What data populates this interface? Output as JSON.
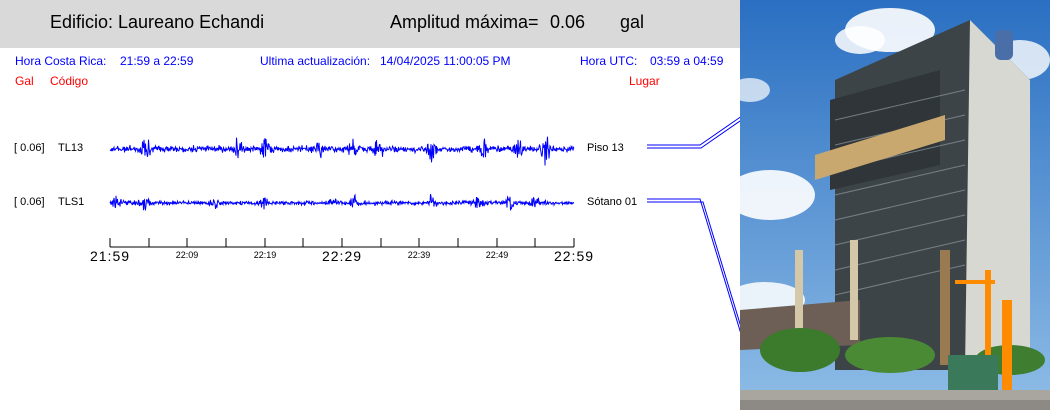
{
  "header": {
    "building_label": "Edificio: Laureano Echandi",
    "amplitude_label": "Amplitud máxima=",
    "amplitude_value": "0.06",
    "amplitude_unit": "gal"
  },
  "info": {
    "cr_time_label": "Hora Costa Rica:",
    "cr_time_value": "21:59 a 22:59",
    "update_label": "Ultima actualización:",
    "update_value": "14/04/2025 11:00:05 PM",
    "utc_label": "Hora UTC:",
    "utc_value": "03:59 a 04:59"
  },
  "columns": {
    "gal": "Gal",
    "code": "Código",
    "place": "Lugar"
  },
  "channels": [
    {
      "gal": "[   0.06]",
      "code": "TL13",
      "place": "Piso 13",
      "amplitude": 0.06
    },
    {
      "gal": "[   0.06]",
      "code": "TLS1",
      "place": "Sótano 01",
      "amplitude": 0.06
    }
  ],
  "time_axis": {
    "major_labels": [
      "21:59",
      "22:29",
      "22:59"
    ],
    "minor_labels": [
      "22:09",
      "22:19",
      "22:39",
      "22:49"
    ]
  },
  "colors": {
    "trace": "#0000ff",
    "header_bg": "#d9d9d9",
    "info_text": "#0000ff",
    "column_text": "#ff0000",
    "leader_line": "#0000ff"
  },
  "photo": {
    "icon": "building-photo"
  }
}
